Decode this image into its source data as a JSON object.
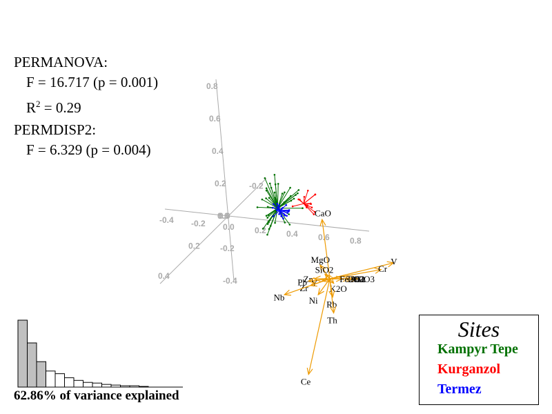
{
  "stats": {
    "permanova_label": "PERMANOVA:",
    "permanova_f": "F = 16.717 (p = 0.001)",
    "r2_base": "R",
    "r2_sup": "2",
    "r2_value": " = 0.29",
    "permdisp_label": "PERMDISP2:",
    "permdisp_f": "F = 6.329 (p = 0.004)"
  },
  "legend": {
    "title": "Sites",
    "items": [
      {
        "label": "Kampyr Tepe",
        "color": "#007000"
      },
      {
        "label": "Kurganzol",
        "color": "#ff0000"
      },
      {
        "label": "Termez",
        "color": "#0000ff"
      }
    ]
  },
  "variance_label": "62.86% of variance explained",
  "chart_data": {
    "type": "scatter",
    "title": "",
    "description": "3D PCA biplot: site spiders from group centroids and geochemical loading vectors",
    "axes": {
      "x_ticks": [
        "-0.4",
        "-0.2",
        "0.0",
        "0.2",
        "0.4",
        "0.6",
        "0.8"
      ],
      "y_ticks": [
        "0.8",
        "0.6",
        "0.4",
        "0.2",
        "0.0",
        "-0.2",
        "-0.4"
      ],
      "z_ticks": [
        "-0.2",
        "0.0",
        "0.2",
        "0.4"
      ],
      "color": "#aaaaaa"
    },
    "arrow_color": "#ee9a00",
    "loadings": [
      {
        "name": "CaO",
        "x": -0.08,
        "y": 0.26
      },
      {
        "name": "MgO",
        "x": -0.1,
        "y": 0.06
      },
      {
        "name": "SiO2",
        "x": -0.05,
        "y": 0.02
      },
      {
        "name": "V",
        "x": 0.66,
        "y": 0.07
      },
      {
        "name": "Cr",
        "x": 0.53,
        "y": 0.04
      },
      {
        "name": "Ga",
        "x": 0.29,
        "y": 0.0
      },
      {
        "name": "Al2O3",
        "x": 0.24,
        "y": 0.0
      },
      {
        "name": "TiO2",
        "x": 0.2,
        "y": 0.0
      },
      {
        "name": "Fe2O3",
        "x": 0.13,
        "y": 0.0
      },
      {
        "name": "K2O",
        "x": 0.04,
        "y": -0.02
      },
      {
        "name": "Y",
        "x": -0.08,
        "y": -0.01
      },
      {
        "name": "Zn",
        "x": -0.16,
        "y": 0.0
      },
      {
        "name": "Pb",
        "x": -0.22,
        "y": -0.01
      },
      {
        "name": "Zr",
        "x": -0.2,
        "y": -0.03
      },
      {
        "name": "Nb",
        "x": -0.47,
        "y": -0.07
      },
      {
        "name": "Ni",
        "x": -0.12,
        "y": -0.07
      },
      {
        "name": "Rb",
        "x": 0.03,
        "y": -0.08
      },
      {
        "name": "Th",
        "x": 0.04,
        "y": -0.15
      },
      {
        "name": "Ce",
        "x": -0.22,
        "y": -0.42
      }
    ],
    "groups": [
      {
        "name": "Kampyr Tepe",
        "color": "#007000",
        "centroid": [
          -0.54,
          0.31
        ],
        "spread": 0.32,
        "n": 40
      },
      {
        "name": "Kurganzol",
        "color": "#ff0000",
        "centroid": [
          -0.27,
          0.33
        ],
        "spread": 0.2,
        "n": 14
      },
      {
        "name": "Termez",
        "color": "#0000ff",
        "centroid": [
          -0.52,
          0.3
        ],
        "spread": 0.12,
        "n": 20
      }
    ],
    "scree": {
      "values": [
        100,
        66,
        38,
        24,
        20,
        14,
        10,
        7,
        6,
        4,
        3,
        2,
        2,
        1
      ],
      "highlighted_components": 3,
      "highlight_color": "#c0c0c0"
    }
  }
}
